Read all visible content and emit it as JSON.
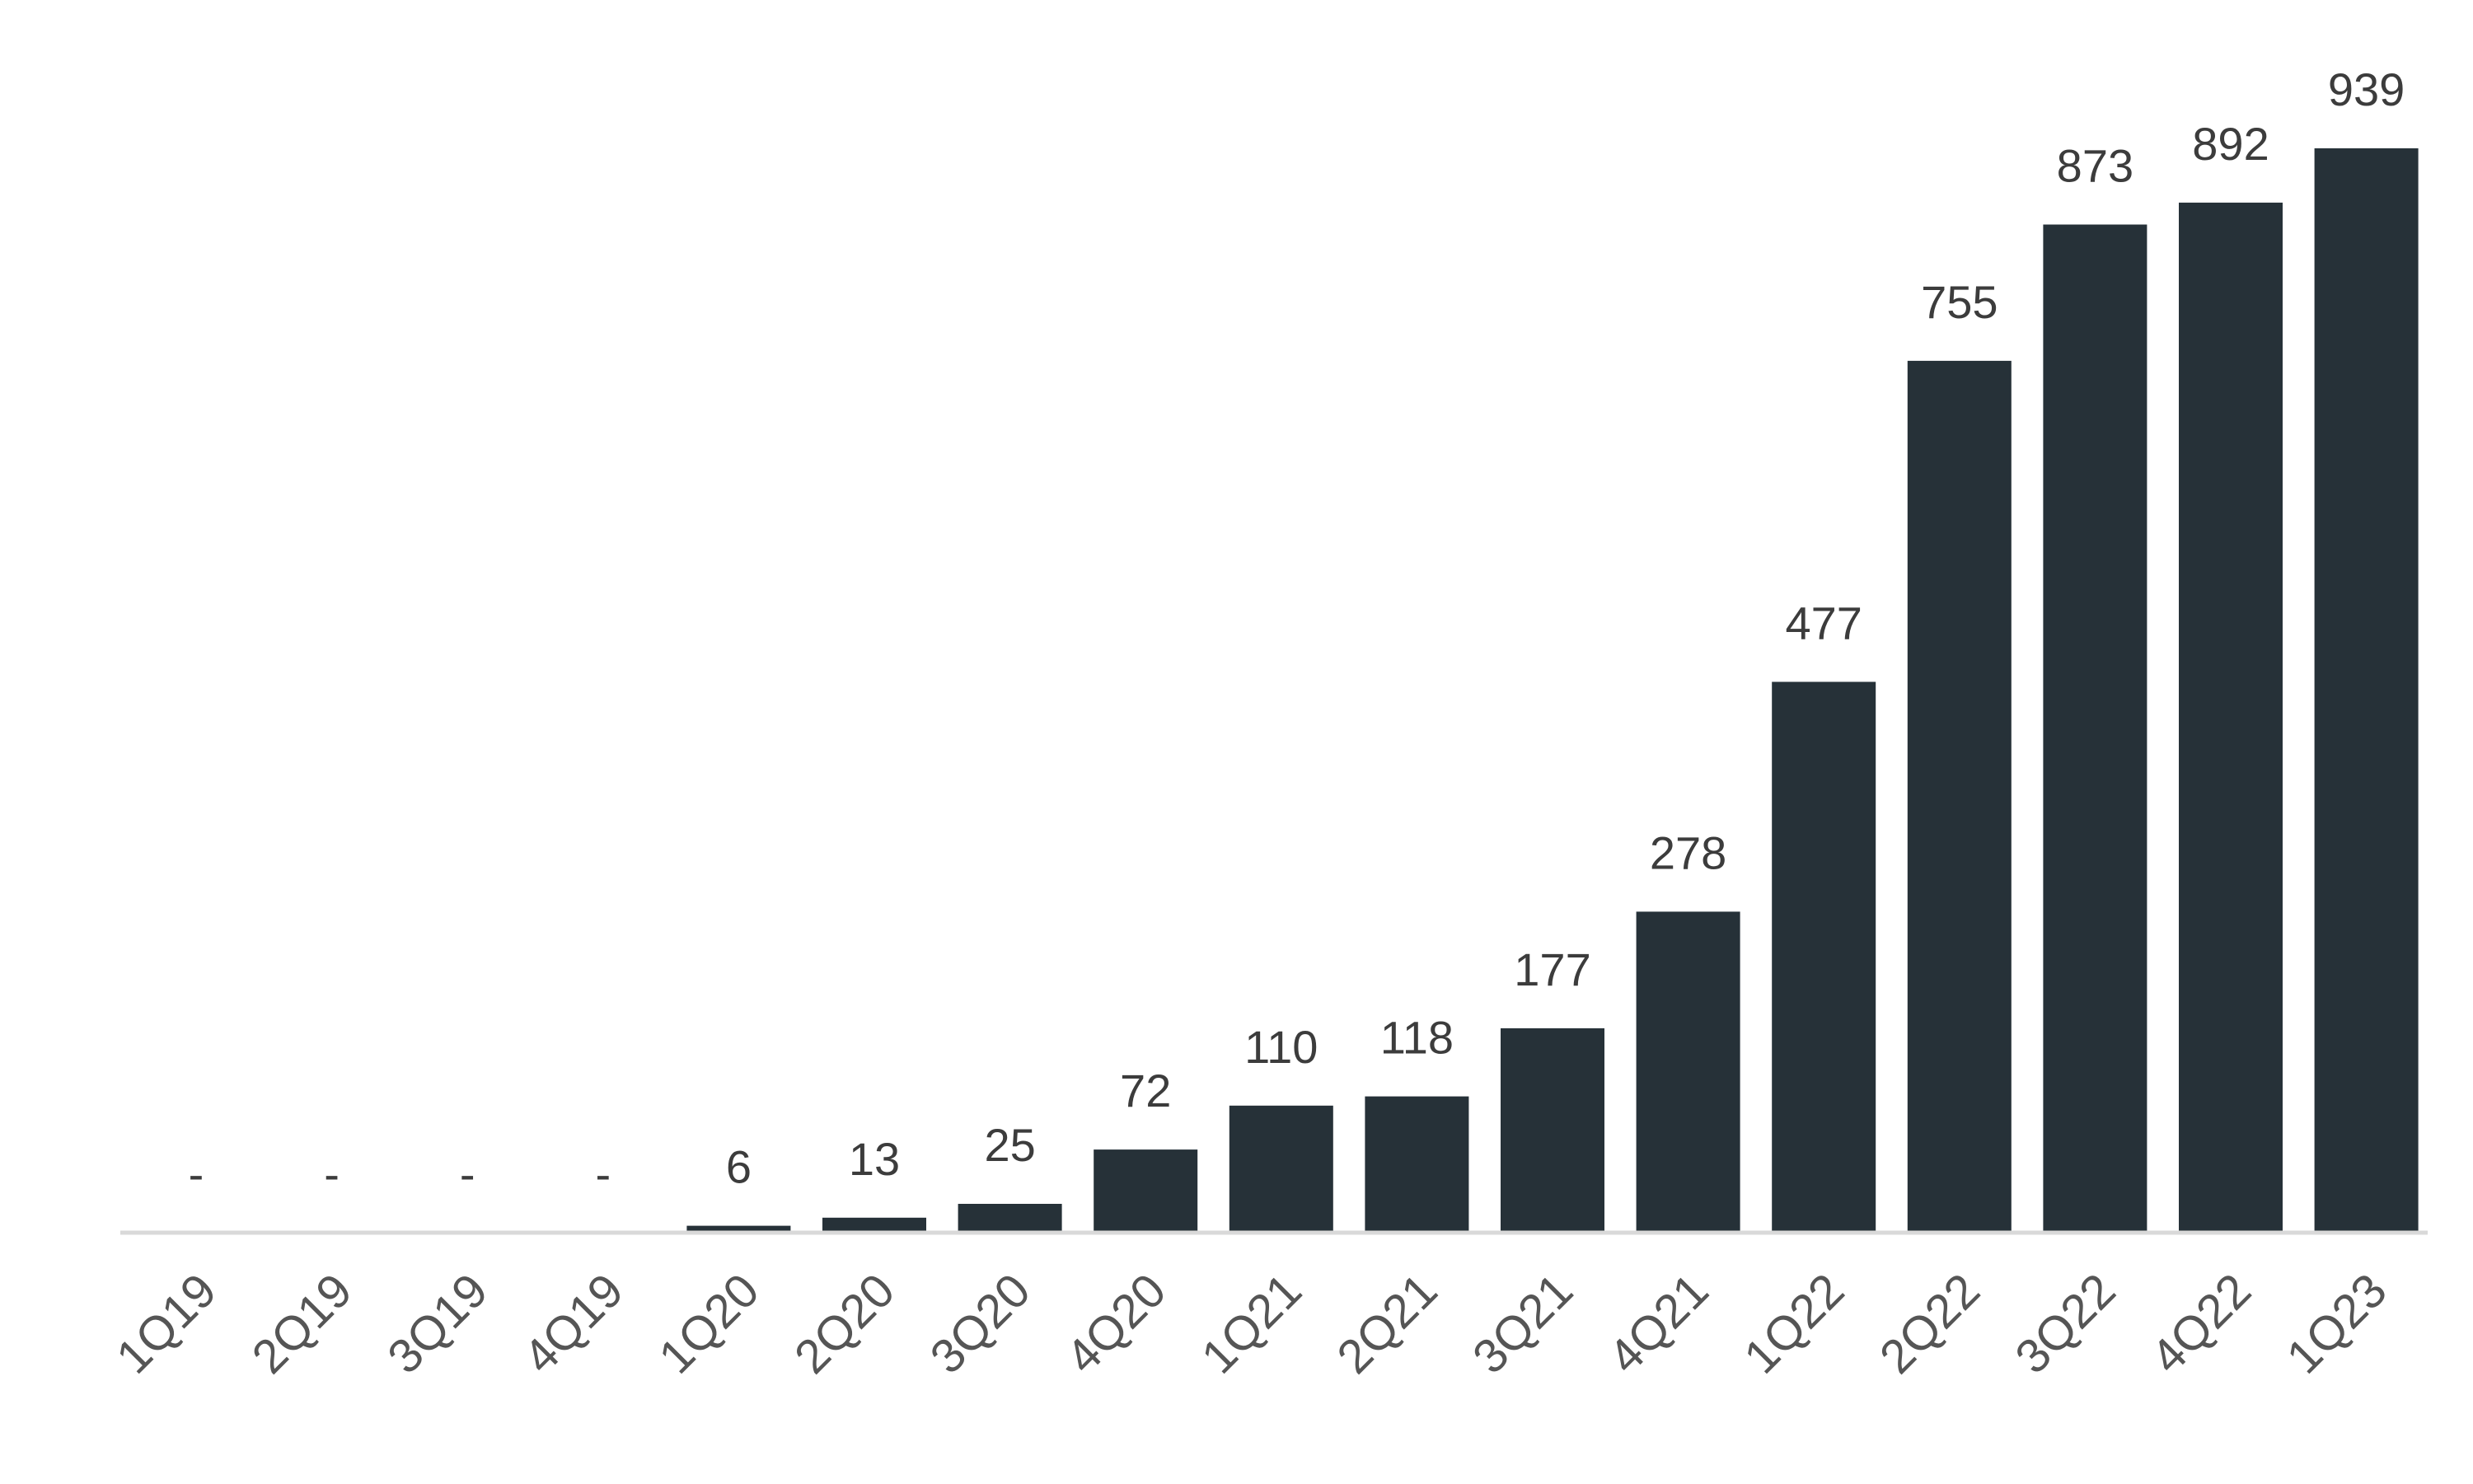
{
  "chart_data": {
    "type": "bar",
    "title": "",
    "xlabel": "",
    "ylabel": "",
    "categories": [
      "1Q19",
      "2Q19",
      "3Q19",
      "4Q19",
      "1Q20",
      "2Q20",
      "3Q20",
      "4Q20",
      "1Q21",
      "2Q21",
      "3Q21",
      "4Q21",
      "1Q22",
      "2Q22",
      "3Q22",
      "4Q22",
      "1Q23"
    ],
    "values": [
      0,
      0,
      0,
      0,
      6,
      13,
      25,
      72,
      110,
      118,
      177,
      278,
      477,
      755,
      873,
      892,
      939
    ],
    "data_labels": [
      "-",
      "-",
      "-",
      "-",
      "6",
      "13",
      "25",
      "72",
      "110",
      "118",
      "177",
      "278",
      "477",
      "755",
      "873",
      "892",
      "939"
    ],
    "ylim": [
      0,
      939
    ],
    "grid": false,
    "legend": "none",
    "colors": {
      "bar": "#263138",
      "axis": "#d9d9d9",
      "label": "#3c3c3c",
      "tick": "#555555"
    }
  }
}
